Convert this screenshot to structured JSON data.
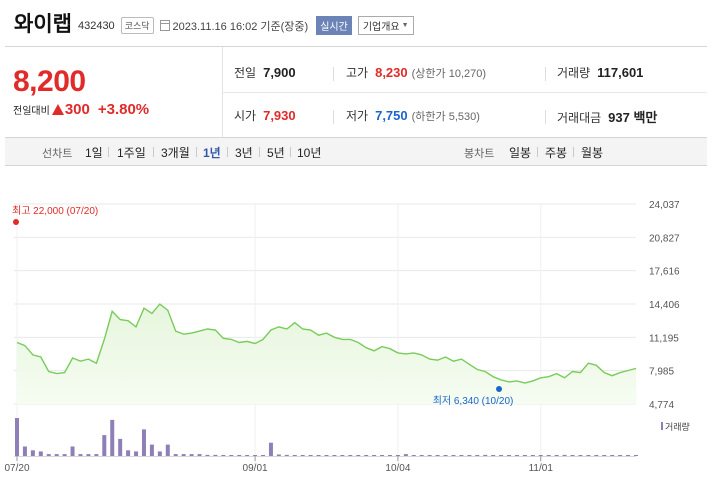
{
  "header": {
    "name": "와이랩",
    "code": "432430",
    "market": "코스닥",
    "date": "2023.11.16 16:02 기준(장중)",
    "realtime_badge": "실시간",
    "company_button": "기업개요"
  },
  "summary": {
    "price": "8,200",
    "change_label": "전일대비",
    "change_value": "300",
    "change_pct": "+3.80%",
    "prev_close_label": "전일",
    "prev_close": "7,900",
    "high_label": "고가",
    "high": "8,230",
    "upper_limit": "(상한가 10,270)",
    "volume_label": "거래량",
    "volume": "117,601",
    "open_label": "시가",
    "open": "7,930",
    "low_label": "저가",
    "low": "7,750",
    "lower_limit": "(하한가 5,530)",
    "amount_label": "거래대금",
    "amount": "937 백만"
  },
  "periods": {
    "line_label": "선차트",
    "items": [
      "1일",
      "1주일",
      "3개월",
      "1년",
      "3년",
      "5년",
      "10년"
    ],
    "active": "1년",
    "candle_label": "봉차트",
    "candle_items": [
      "일봉",
      "주봉",
      "월봉"
    ]
  },
  "colors": {
    "up": "#e12a2a",
    "down": "#1a66cc",
    "line": "#79cc5a",
    "area": "#e6f6dd",
    "volume": "#8f7fb8",
    "active_period": "#3459a8"
  },
  "chart_data": {
    "type": "area",
    "y_ticks": [
      "24,037",
      "20,827",
      "17,616",
      "14,406",
      "11,195",
      "7,985",
      "4,774"
    ],
    "ylim": [
      4774,
      24037
    ],
    "x_ticks": [
      "07/20",
      "09/01",
      "10/04",
      "11/01"
    ],
    "high_annotation": "최고 22,000 (07/20)",
    "low_annotation": "최저 6,340 (10/20)",
    "volume_label": "거래량",
    "price_series": [
      10700,
      10400,
      9500,
      9300,
      7900,
      7700,
      7800,
      9200,
      8900,
      9100,
      8700,
      11000,
      13700,
      12900,
      12800,
      12200,
      14000,
      13500,
      14400,
      13800,
      11800,
      11500,
      11600,
      11800,
      12000,
      11900,
      11100,
      11000,
      10700,
      10800,
      10600,
      11000,
      11900,
      12200,
      12000,
      12600,
      12000,
      11900,
      11400,
      11600,
      11200,
      11000,
      11000,
      10700,
      10200,
      9900,
      10300,
      10100,
      9700,
      9600,
      9700,
      9500,
      9100,
      9000,
      9300,
      8900,
      9100,
      8600,
      8100,
      7900,
      7400,
      7100,
      6900,
      7000,
      6800,
      7000,
      7300,
      7400,
      7700,
      7300,
      7900,
      7800,
      8700,
      8500,
      7800,
      7500,
      7800,
      8000,
      8200
    ],
    "volume_series": [
      1.0,
      0.25,
      0.15,
      0.12,
      0.05,
      0.05,
      0.05,
      0.25,
      0.05,
      0.05,
      0.05,
      0.55,
      0.95,
      0.45,
      0.15,
      0.12,
      0.7,
      0.3,
      0.12,
      0.3,
      0.05,
      0.05,
      0.05,
      0.05,
      0.03,
      0.03,
      0.02,
      0.02,
      0.02,
      0.02,
      0.02,
      0.02,
      0.35,
      0.04,
      0.03,
      0.02,
      0.02,
      0.02,
      0.02,
      0.02,
      0.02,
      0.01,
      0.01,
      0.01,
      0.01,
      0.01,
      0.01,
      0.01,
      0.01,
      0.05,
      0.01,
      0.01,
      0.01,
      0.01,
      0.01,
      0.01,
      0.01,
      0.01,
      0.01,
      0.03,
      0.01,
      0.01,
      0.01,
      0.01,
      0.01,
      0.01,
      0.01,
      0.01,
      0.01,
      0.03,
      0.01,
      0.01,
      0.01,
      0.01,
      0.01,
      0.01,
      0.01,
      0.01,
      0.01
    ]
  }
}
